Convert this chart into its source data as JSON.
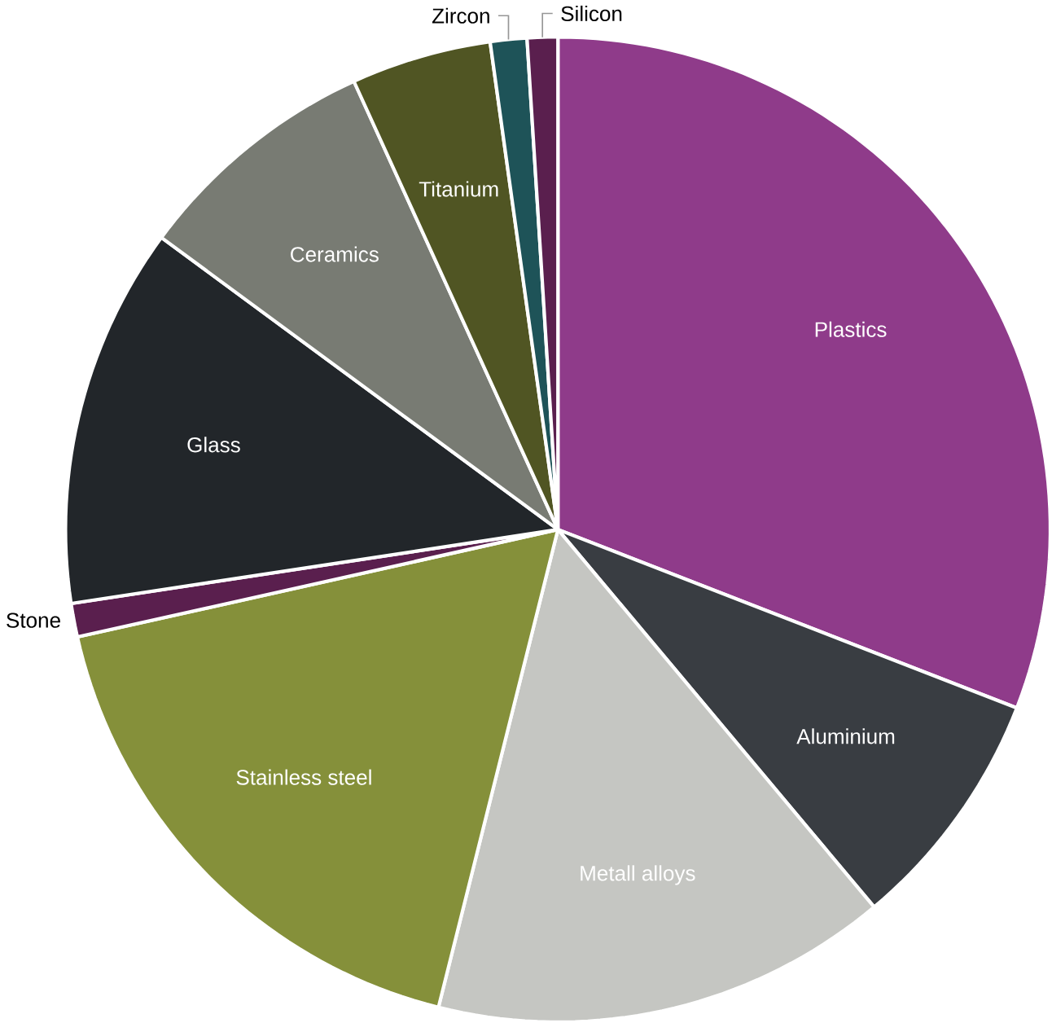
{
  "chart_data": {
    "type": "pie",
    "categories": [
      "Plastics",
      "Aluminium",
      "Metall alloys",
      "Stainless steel",
      "Stone",
      "Glass",
      "Ceramics",
      "Titanium",
      "Zircon",
      "Silicon"
    ],
    "values": [
      30.9,
      8.0,
      15.0,
      17.6,
      1.1,
      12.5,
      8.1,
      4.6,
      1.2,
      1.0
    ],
    "colors": [
      "#8f3b8a",
      "#393d42",
      "#c5c6c2",
      "#85903a",
      "#5a1f4e",
      "#22262a",
      "#787b73",
      "#505523",
      "#1e5358",
      "#5a1f4e"
    ]
  }
}
